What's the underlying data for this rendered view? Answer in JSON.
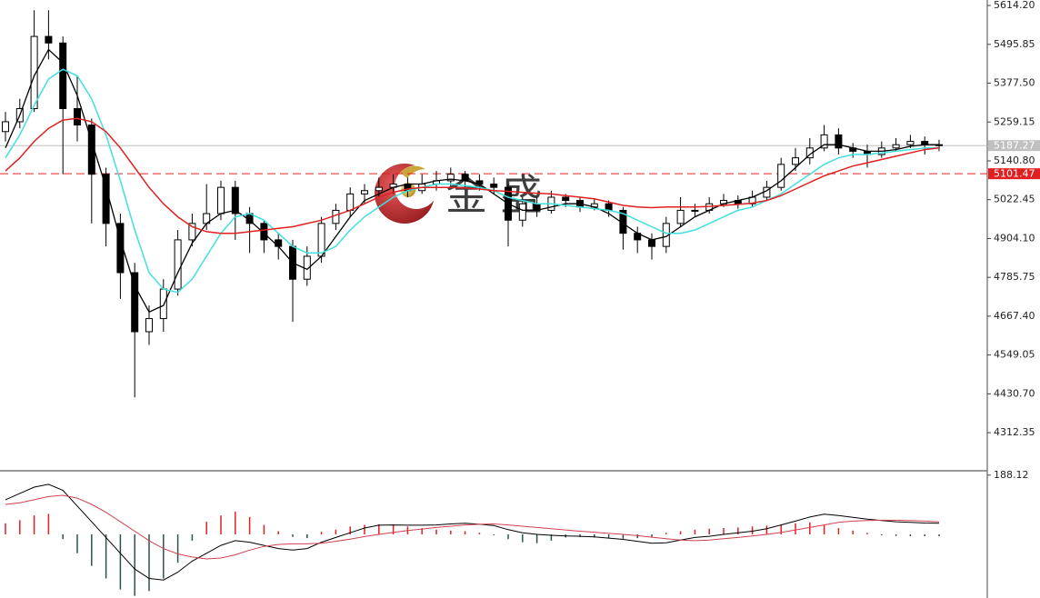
{
  "chart_data": [
    {
      "type": "candlestick",
      "watermark": "金 盛",
      "open": [
        5230,
        5260,
        5300,
        5520,
        5500,
        5300,
        5250,
        5100,
        4950,
        4800,
        4620,
        4660,
        4750,
        4900,
        4950,
        4980,
        5060,
        4980,
        4950,
        4900,
        4880,
        4780,
        4850,
        4950,
        4990,
        5040,
        5050,
        5060,
        5070,
        5050,
        5070,
        5080,
        5100,
        5080,
        5070,
        5060,
        4960,
        5010,
        4990,
        5030,
        5020,
        5000,
        5010,
        4990,
        4920,
        4900,
        4880,
        4950,
        4990,
        4990,
        5010,
        5020,
        5010,
        5030,
        5060,
        5130,
        5150,
        5180,
        5220,
        5180,
        5170,
        5160,
        5180,
        5190,
        5200,
        5190
      ],
      "high": [
        5290,
        5330,
        5600,
        5600,
        5520,
        5400,
        5270,
        5120,
        4980,
        4830,
        4700,
        4780,
        4930,
        4980,
        5070,
        5080,
        5080,
        5000,
        4960,
        4920,
        4900,
        4880,
        4970,
        5010,
        5060,
        5070,
        5090,
        5100,
        5090,
        5100,
        5110,
        5120,
        5110,
        5100,
        5090,
        5070,
        5030,
        5030,
        5050,
        5040,
        5030,
        5025,
        5020,
        5000,
        4940,
        4920,
        4970,
        5030,
        5010,
        5030,
        5040,
        5035,
        5050,
        5080,
        5150,
        5180,
        5210,
        5250,
        5240,
        5195,
        5190,
        5200,
        5210,
        5220,
        5215,
        5205
      ],
      "low": [
        5200,
        5240,
        5290,
        5450,
        5100,
        5200,
        4950,
        4880,
        4720,
        4420,
        4580,
        4620,
        4730,
        4880,
        4930,
        4960,
        4900,
        4860,
        4860,
        4840,
        4650,
        4760,
        4830,
        4930,
        4970,
        5010,
        5030,
        5040,
        5030,
        5040,
        5050,
        5060,
        5060,
        5050,
        5040,
        4880,
        4940,
        4970,
        4980,
        5000,
        4985,
        4990,
        4970,
        4870,
        4860,
        4840,
        4860,
        4940,
        4970,
        4980,
        5000,
        4995,
        5000,
        5020,
        5050,
        5110,
        5130,
        5170,
        5160,
        5150,
        5120,
        5150,
        5170,
        5180,
        5160,
        5170
      ],
      "close": [
        5260,
        5300,
        5520,
        5500,
        5300,
        5250,
        5100,
        4950,
        4800,
        4620,
        4660,
        4750,
        4900,
        4950,
        4980,
        5060,
        4980,
        4950,
        4900,
        4880,
        4780,
        4850,
        4950,
        4990,
        5040,
        5050,
        5060,
        5070,
        5050,
        5070,
        5080,
        5100,
        5080,
        5070,
        5060,
        4960,
        5010,
        4990,
        5030,
        5020,
        5000,
        5010,
        4990,
        4920,
        4900,
        4880,
        4950,
        4990,
        4990,
        5010,
        5020,
        5010,
        5030,
        5060,
        5130,
        5150,
        5180,
        5220,
        5180,
        5170,
        5160,
        5180,
        5190,
        5200,
        5190,
        5187.27
      ],
      "bull_color": "#ffffff",
      "bear_color": "#000000",
      "series": [
        {
          "color": "#000000",
          "values": [
            5180,
            5280,
            5400,
            5480,
            5440,
            5340,
            5200,
            5060,
            4900,
            4760,
            4680,
            4700,
            4800,
            4890,
            4950,
            4980,
            4990,
            4960,
            4920,
            4880,
            4830,
            4810,
            4850,
            4910,
            4970,
            5020,
            5040,
            5060,
            5070,
            5070,
            5080,
            5085,
            5080,
            5070,
            5040,
            5010,
            4990,
            4990,
            5000,
            5010,
            5010,
            5000,
            4980,
            4950,
            4920,
            4900,
            4910,
            4940,
            4970,
            4990,
            5010,
            5020,
            5030,
            5050,
            5080,
            5120,
            5160,
            5190,
            5190,
            5180,
            5170,
            5170,
            5175,
            5185,
            5190,
            5190
          ]
        },
        {
          "color": "#40e0e0",
          "values": [
            5150,
            5220,
            5310,
            5390,
            5420,
            5400,
            5330,
            5220,
            5080,
            4930,
            4800,
            4750,
            4740,
            4780,
            4850,
            4920,
            4970,
            4980,
            4960,
            4920,
            4880,
            4860,
            4860,
            4880,
            4930,
            4970,
            5000,
            5030,
            5050,
            5060,
            5070,
            5070,
            5065,
            5060,
            5050,
            5030,
            5020,
            5010,
            5010,
            5005,
            5000,
            4995,
            4990,
            4980,
            4960,
            4940,
            4920,
            4920,
            4930,
            4950,
            4970,
            4990,
            5000,
            5020,
            5040,
            5070,
            5100,
            5130,
            5150,
            5160,
            5160,
            5165,
            5170,
            5175,
            5180,
            5180
          ]
        },
        {
          "color": "#e02020",
          "values": [
            5110,
            5150,
            5200,
            5240,
            5265,
            5270,
            5260,
            5230,
            5180,
            5120,
            5060,
            5010,
            4970,
            4940,
            4925,
            4920,
            4920,
            4925,
            4930,
            4935,
            4940,
            4950,
            4960,
            4975,
            4990,
            5010,
            5030,
            5045,
            5055,
            5060,
            5060,
            5060,
            5058,
            5055,
            5050,
            5048,
            5045,
            5042,
            5040,
            5035,
            5030,
            5025,
            5015,
            5005,
            5000,
            4998,
            5000,
            5000,
            5000,
            5002,
            5005,
            5008,
            5012,
            5020,
            5035,
            5055,
            5075,
            5095,
            5110,
            5125,
            5135,
            5145,
            5155,
            5165,
            5175,
            5180
          ]
        }
      ],
      "price_lines": [
        {
          "value": 5187.27,
          "label": "5187.27",
          "color": "#c0c0c0",
          "style": "solid"
        },
        {
          "value": 5101.47,
          "label": "5101.47",
          "color": "#e02020",
          "style": "dashed"
        }
      ],
      "ylim": [
        4199,
        5631
      ],
      "yticks": [
        {
          "value": 5614.2,
          "label": "5614.20"
        },
        {
          "value": 5495.85,
          "label": "5495.85"
        },
        {
          "value": 5377.5,
          "label": "5377.50"
        },
        {
          "value": 5259.15,
          "label": "5259.15"
        },
        {
          "value": 5140.8,
          "label": "5140.80"
        },
        {
          "value": 5022.45,
          "label": "5022.45"
        },
        {
          "value": 4904.1,
          "label": "4904.10"
        },
        {
          "value": 4785.75,
          "label": "4785.75"
        },
        {
          "value": 4667.4,
          "label": "4667.40"
        },
        {
          "value": 4549.05,
          "label": "4549.05"
        },
        {
          "value": 4430.7,
          "label": "4430.70"
        },
        {
          "value": 4312.35,
          "label": "4312.35"
        }
      ]
    },
    {
      "type": "macd",
      "histogram": {
        "pos_color": "#e02020",
        "neg_color": "#2f4f4f",
        "values": [
          35,
          45,
          60,
          65,
          -15,
          -60,
          -100,
          -140,
          -175,
          -195,
          -180,
          -140,
          -90,
          -20,
          40,
          60,
          72,
          55,
          30,
          10,
          -8,
          -12,
          8,
          15,
          25,
          30,
          32,
          30,
          25,
          20,
          15,
          12,
          10,
          5,
          -3,
          -15,
          -25,
          -28,
          -20,
          -10,
          -8,
          -10,
          -12,
          -14,
          -12,
          -8,
          5,
          10,
          15,
          18,
          20,
          22,
          25,
          28,
          30,
          35,
          38,
          30,
          20,
          12,
          5,
          -3,
          -5,
          -6,
          -6,
          -6
        ]
      },
      "series": [
        {
          "color": "#000000",
          "values": [
            110,
            130,
            150,
            159,
            140,
            90,
            40,
            -10,
            -60,
            -110,
            -140,
            -145,
            -120,
            -85,
            -60,
            -35,
            -20,
            -25,
            -35,
            -45,
            -50,
            -45,
            -25,
            -10,
            5,
            20,
            29,
            30,
            29,
            29,
            30,
            33,
            35,
            32,
            28,
            15,
            5,
            0,
            -3,
            -5,
            -6,
            -8,
            -12,
            -16,
            -22,
            -28,
            -27,
            -18,
            -10,
            -6,
            0,
            5,
            10,
            18,
            30,
            42,
            55,
            64,
            60,
            54,
            48,
            44,
            40,
            38,
            36,
            35
          ]
        },
        {
          "color": "#d04050",
          "values": [
            95,
            100,
            110,
            120,
            124,
            115,
            95,
            70,
            40,
            10,
            -20,
            -45,
            -62,
            -72,
            -78,
            -75,
            -65,
            -50,
            -38,
            -32,
            -30,
            -30,
            -28,
            -22,
            -15,
            -7,
            0,
            6,
            12,
            17,
            22,
            26,
            30,
            32,
            33,
            30,
            26,
            22,
            18,
            14,
            10,
            7,
            3,
            0,
            -4,
            -9,
            -14,
            -18,
            -20,
            -18,
            -14,
            -10,
            -5,
            0,
            6,
            14,
            22,
            30,
            38,
            42,
            44,
            45,
            45,
            44,
            42,
            40
          ]
        }
      ],
      "ylim": [
        -202,
        199
      ],
      "yticks": [
        {
          "value": 188.12,
          "label": "188.12"
        }
      ]
    }
  ]
}
